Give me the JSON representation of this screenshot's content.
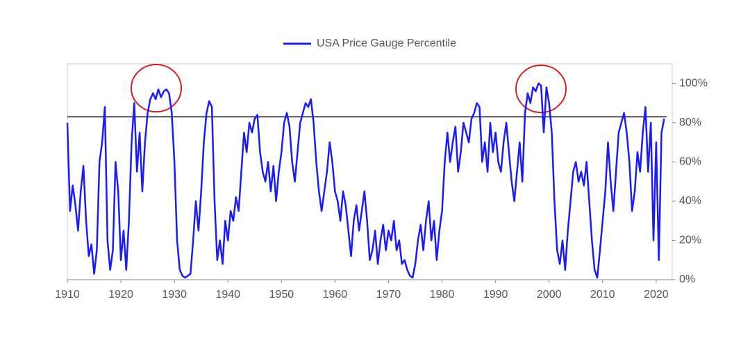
{
  "chart_data": {
    "type": "line",
    "x": [
      1910,
      1910.5,
      1911,
      1911.5,
      1912,
      1912.5,
      1913,
      1913.5,
      1914,
      1914.5,
      1915,
      1915.5,
      1916,
      1916.5,
      1917,
      1917.5,
      1918,
      1918.5,
      1919,
      1919.5,
      1920,
      1920.5,
      1921,
      1921.5,
      1922,
      1922.5,
      1923,
      1923.5,
      1924,
      1924.5,
      1925,
      1925.5,
      1926,
      1926.5,
      1927,
      1927.5,
      1928,
      1928.5,
      1929,
      1929.5,
      1930,
      1930.5,
      1931,
      1931.5,
      1932,
      1932.5,
      1933,
      1933.5,
      1934,
      1934.5,
      1935,
      1935.5,
      1936,
      1936.5,
      1937,
      1937.5,
      1938,
      1938.5,
      1939,
      1939.5,
      1940,
      1940.5,
      1941,
      1941.5,
      1942,
      1942.5,
      1943,
      1943.5,
      1944,
      1944.5,
      1945,
      1945.5,
      1946,
      1946.5,
      1947,
      1947.5,
      1948,
      1948.5,
      1949,
      1949.5,
      1950,
      1950.5,
      1951,
      1951.5,
      1952,
      1952.5,
      1953,
      1953.5,
      1954,
      1954.5,
      1955,
      1955.5,
      1956,
      1956.5,
      1957,
      1957.5,
      1958,
      1958.5,
      1959,
      1959.5,
      1960,
      1960.5,
      1961,
      1961.5,
      1962,
      1962.5,
      1963,
      1963.5,
      1964,
      1964.5,
      1965,
      1965.5,
      1966,
      1966.5,
      1967,
      1967.5,
      1968,
      1968.5,
      1969,
      1969.5,
      1970,
      1970.5,
      1971,
      1971.5,
      1972,
      1972.5,
      1973,
      1973.5,
      1974,
      1974.5,
      1975,
      1975.5,
      1976,
      1976.5,
      1977,
      1977.5,
      1978,
      1978.5,
      1979,
      1979.5,
      1980,
      1980.5,
      1981,
      1981.5,
      1982,
      1982.5,
      1983,
      1983.5,
      1984,
      1984.5,
      1985,
      1985.5,
      1986,
      1986.5,
      1987,
      1987.5,
      1988,
      1988.5,
      1989,
      1989.5,
      1990,
      1990.5,
      1991,
      1991.5,
      1992,
      1992.5,
      1993,
      1993.5,
      1994,
      1994.5,
      1995,
      1995.5,
      1996,
      1996.5,
      1997,
      1997.5,
      1998,
      1998.5,
      1999,
      1999.5,
      2000,
      2000.5,
      2001,
      2001.5,
      2002,
      2002.5,
      2003,
      2003.5,
      2004,
      2004.5,
      2005,
      2005.5,
      2006,
      2006.5,
      2007,
      2007.5,
      2008,
      2008.5,
      2009,
      2009.5,
      2010,
      2010.5,
      2011,
      2011.5,
      2012,
      2012.5,
      2013,
      2013.5,
      2014,
      2014.5,
      2015,
      2015.5,
      2016,
      2016.5,
      2017,
      2017.5,
      2018,
      2018.5,
      2019,
      2019.5,
      2020,
      2020.5,
      2021,
      2021.5
    ],
    "series": [
      {
        "name": "USA Price Gauge Percentile",
        "color": "#1a1aff",
        "values": [
          80,
          35,
          48,
          38,
          25,
          45,
          58,
          30,
          12,
          18,
          3,
          15,
          60,
          70,
          88,
          20,
          5,
          15,
          60,
          45,
          10,
          25,
          5,
          30,
          70,
          90,
          55,
          75,
          45,
          70,
          85,
          92,
          95,
          92,
          97,
          93,
          96,
          97,
          95,
          85,
          60,
          20,
          5,
          2,
          1,
          2,
          3,
          20,
          40,
          25,
          45,
          70,
          85,
          91,
          88,
          40,
          10,
          20,
          8,
          30,
          20,
          35,
          30,
          42,
          35,
          55,
          75,
          65,
          80,
          75,
          82,
          84,
          65,
          55,
          50,
          60,
          45,
          58,
          40,
          55,
          65,
          80,
          85,
          78,
          60,
          50,
          65,
          80,
          85,
          90,
          88,
          92,
          80,
          60,
          45,
          35,
          45,
          55,
          70,
          60,
          45,
          40,
          30,
          45,
          38,
          25,
          12,
          30,
          38,
          25,
          35,
          45,
          30,
          10,
          15,
          25,
          8,
          20,
          28,
          15,
          25,
          20,
          30,
          15,
          20,
          8,
          10,
          5,
          2,
          1,
          8,
          20,
          28,
          15,
          30,
          40,
          20,
          30,
          10,
          25,
          35,
          60,
          75,
          60,
          70,
          78,
          55,
          65,
          80,
          75,
          70,
          82,
          85,
          90,
          88,
          60,
          70,
          55,
          80,
          65,
          75,
          60,
          55,
          70,
          80,
          65,
          50,
          40,
          55,
          70,
          50,
          85,
          95,
          90,
          98,
          96,
          100,
          99,
          75,
          98,
          90,
          75,
          40,
          15,
          8,
          20,
          5,
          25,
          40,
          55,
          60,
          50,
          55,
          48,
          60,
          40,
          20,
          5,
          1,
          15,
          30,
          45,
          70,
          50,
          35,
          55,
          75,
          80,
          85,
          75,
          60,
          35,
          45,
          65,
          55,
          75,
          88,
          55,
          80,
          20,
          70,
          10,
          75,
          82
        ]
      }
    ],
    "xlim": [
      1910,
      2023
    ],
    "xticks": [
      1910,
      1920,
      1930,
      1940,
      1950,
      1960,
      1970,
      1980,
      1990,
      2000,
      2010,
      2020
    ],
    "ylim": [
      0,
      110
    ],
    "yticks": [
      {
        "value": 0,
        "label": "0%"
      },
      {
        "value": 20,
        "label": "20%"
      },
      {
        "value": 40,
        "label": "40%"
      },
      {
        "value": 60,
        "label": "60%"
      },
      {
        "value": 80,
        "label": "80%"
      },
      {
        "value": 100,
        "label": "100%"
      }
    ],
    "reference_line": 83,
    "legend": "top"
  }
}
